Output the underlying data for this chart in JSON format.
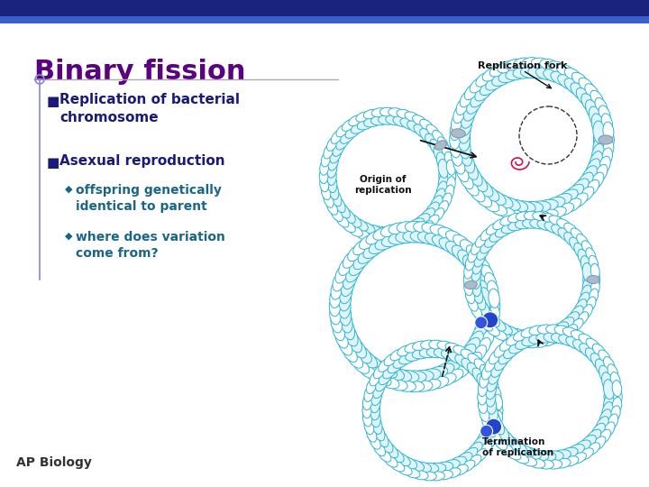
{
  "bg_color": "#ffffff",
  "top_bar_color": "#1a237e",
  "top_bar2_color": "#3a5fc8",
  "title": "Binary fission",
  "title_color": "#5b0080",
  "title_fontsize": 22,
  "bullet_color": "#1a1a7a",
  "bullet1": "Replication of bacterial\nchromosome",
  "bullet2": "Asexual reproduction",
  "sub1": "offspring genetically\nidentical to parent",
  "sub2": "where does variation\ncome from?",
  "ap_label": "AP Biology",
  "dna_color": "#2ab5d5",
  "dna_color2": "#1a8fb5",
  "label_color": "#111111"
}
